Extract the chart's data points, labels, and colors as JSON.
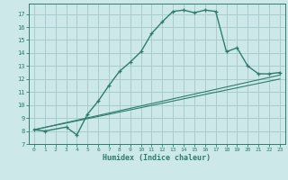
{
  "title": "",
  "xlabel": "Humidex (Indice chaleur)",
  "background_color": "#cce8e8",
  "grid_color": "#aacccc",
  "line_color": "#2e7d6e",
  "xlim": [
    -0.5,
    23.5
  ],
  "ylim": [
    7,
    17.8
  ],
  "xticks": [
    0,
    1,
    2,
    3,
    4,
    5,
    6,
    7,
    8,
    9,
    10,
    11,
    12,
    13,
    14,
    15,
    16,
    17,
    18,
    19,
    20,
    21,
    22,
    23
  ],
  "yticks": [
    7,
    8,
    9,
    10,
    11,
    12,
    13,
    14,
    15,
    16,
    17
  ],
  "series1_x": [
    0,
    1,
    3,
    4,
    5,
    6,
    7,
    8,
    9,
    10,
    11,
    12,
    13,
    14,
    15,
    16,
    17,
    18,
    19,
    20,
    21,
    22,
    23
  ],
  "series1_y": [
    8.1,
    8.0,
    8.3,
    7.7,
    9.3,
    10.3,
    11.5,
    12.6,
    13.3,
    14.1,
    15.5,
    16.4,
    17.2,
    17.3,
    17.1,
    17.3,
    17.2,
    14.1,
    14.4,
    13.0,
    12.4,
    12.4,
    12.5
  ],
  "series2_x": [
    0,
    23
  ],
  "series2_y": [
    8.1,
    12.3
  ],
  "series3_x": [
    0,
    23
  ],
  "series3_y": [
    8.1,
    12.0
  ]
}
